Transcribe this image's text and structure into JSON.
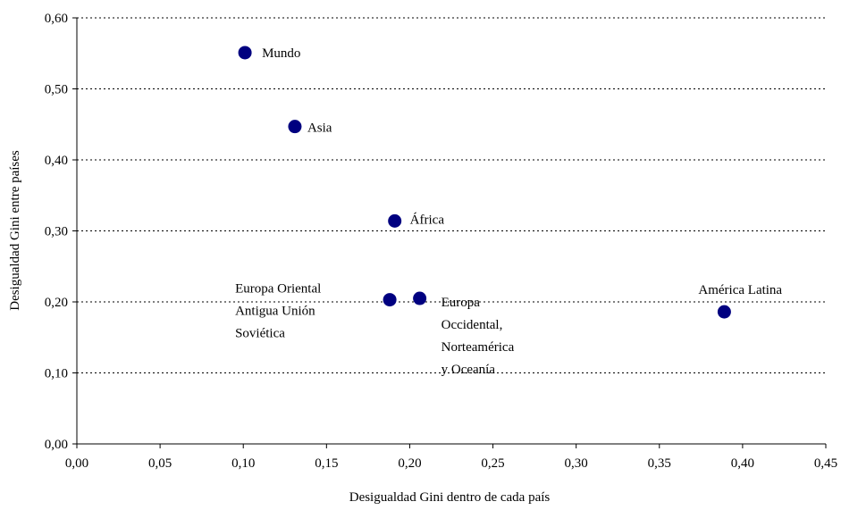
{
  "chart_data": {
    "type": "scatter",
    "xlabel": "Desigualdad Gini dentro de cada país",
    "ylabel": "Desigualdad Gini entre países",
    "xlim": [
      0,
      0.45
    ],
    "ylim": [
      0,
      0.6
    ],
    "x_ticks": [
      "0,00",
      "0,05",
      "0,10",
      "0,15",
      "0,20",
      "0,25",
      "0,30",
      "0,35",
      "0,40",
      "0,45"
    ],
    "y_ticks": [
      "0,00",
      "0,10",
      "0,20",
      "0,30",
      "0,40",
      "0,50",
      "0,60"
    ],
    "grid": "horizontal dotted",
    "legend": "none",
    "marker_color": "#000080",
    "points": [
      {
        "x": 0.101,
        "y": 0.551,
        "label": [
          "Mundo"
        ]
      },
      {
        "x": 0.131,
        "y": 0.447,
        "label": [
          "Asia"
        ]
      },
      {
        "x": 0.191,
        "y": 0.314,
        "label": [
          "África"
        ]
      },
      {
        "x": 0.188,
        "y": 0.203,
        "label": [
          "Europa Oriental",
          "Antigua Unión",
          "Soviética"
        ]
      },
      {
        "x": 0.206,
        "y": 0.205,
        "label": [
          "Europa",
          "Occidental,",
          "Norteamérica",
          "y Oceanía"
        ]
      },
      {
        "x": 0.389,
        "y": 0.186,
        "label": [
          "América Latina"
        ]
      }
    ]
  }
}
